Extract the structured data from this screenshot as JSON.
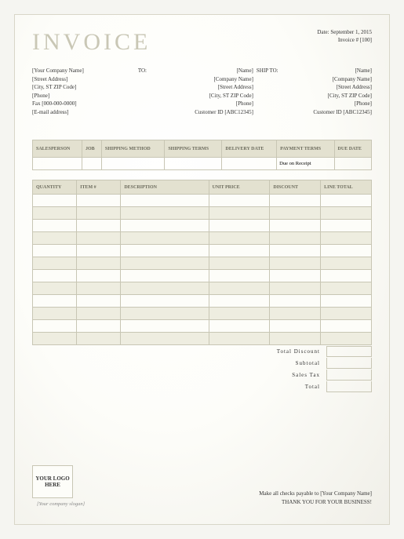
{
  "title": "INVOICE",
  "meta": {
    "date_label": "Date:",
    "date_value": "September 1, 2015",
    "invoice_label": "Invoice #",
    "invoice_value": "[100]"
  },
  "from": {
    "company": "[Your Company Name]",
    "street": "[Street Address]",
    "city": "[City, ST ZIP Code]",
    "phone": "[Phone]",
    "fax": "Fax [000-000-0000]",
    "email": "[E-mail address]"
  },
  "to": {
    "label": "TO:",
    "name": "[Name]",
    "company": "[Company Name]",
    "street": "[Street Address]",
    "city": "[City, ST ZIP Code]",
    "phone": "[Phone]",
    "customer": "Customer ID [ABC12345]"
  },
  "ship": {
    "label": "SHIP TO:",
    "name": "[Name]",
    "company": "[Company Name]",
    "street": "[Street Address]",
    "city": "[City, ST ZIP Code]",
    "phone": "[Phone]",
    "customer": "Customer ID [ABC12345]"
  },
  "table1": {
    "headers": [
      "SALESPERSON",
      "JOB",
      "SHIPPING METHOD",
      "SHIPPING TERMS",
      "DELIVERY DATE",
      "PAYMENT TERMS",
      "DUE DATE"
    ],
    "row": [
      "",
      "",
      "",
      "",
      "",
      "Due on Receipt",
      ""
    ]
  },
  "table2": {
    "headers": [
      "QUANTITY",
      "ITEM #",
      "DESCRIPTION",
      "UNIT PRICE",
      "DISCOUNT",
      "LINE TOTAL"
    ],
    "colwidths": [
      "13%",
      "13%",
      "26%",
      "18%",
      "15%",
      "15%"
    ],
    "rows": 12
  },
  "totals": {
    "total_discount": "Total Discount",
    "subtotal": "Subtotal",
    "sales_tax": "Sales Tax",
    "total": "Total"
  },
  "footer": {
    "logo_text": "YOUR LOGO HERE",
    "slogan": "[Your company slogan]",
    "payable": "Make all checks payable to [Your Company Name]",
    "thanks": "THANK YOU FOR YOUR BUSINESS!"
  },
  "colors": {
    "header_bg": "#e3e1d0",
    "border": "#c8c6b4",
    "title": "#c9c7b5"
  }
}
